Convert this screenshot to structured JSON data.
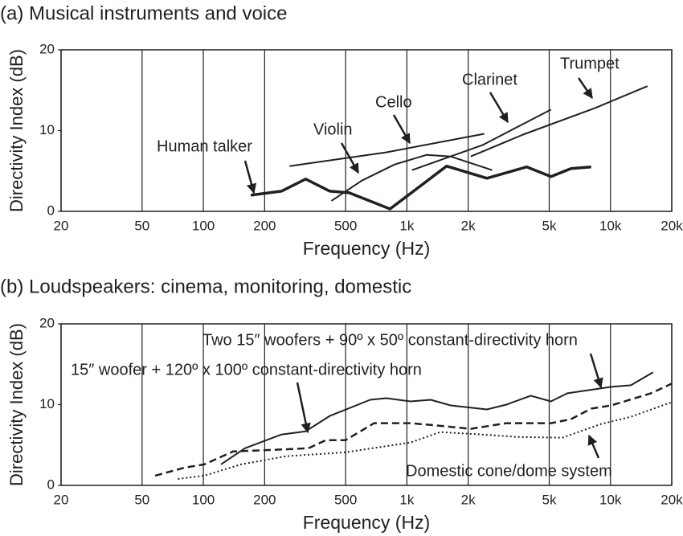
{
  "chart_data": [
    {
      "type": "line",
      "title": "(a) Musical instruments and voice",
      "x_label": "Frequency (Hz)",
      "y_label": "Directivity Index (dB)",
      "log_x": true,
      "grid": "x",
      "xlim": [
        20,
        20000
      ],
      "ylim": [
        0,
        20
      ],
      "xticks": [
        20,
        50,
        100,
        200,
        500,
        {
          "value": 1000,
          "label": "1k"
        },
        {
          "value": 2000,
          "label": "2k"
        },
        {
          "value": 5000,
          "label": "5k"
        },
        {
          "value": 10000,
          "label": "10k"
        },
        {
          "value": 20000,
          "label": "20k"
        }
      ],
      "yticks": [
        0,
        10,
        20
      ],
      "series": [
        {
          "name": "Human talker",
          "color": "#231f20",
          "line_width": 3.5,
          "dash": "solid",
          "x": [
            171,
            242,
            318,
            418,
            520,
            826,
            1566,
            2470,
            3880,
            5100,
            6400,
            8040
          ],
          "values": [
            2.0,
            2.5,
            4.0,
            2.5,
            2.3,
            0.3,
            5.6,
            4.1,
            5.5,
            4.3,
            5.3,
            5.5
          ]
        },
        {
          "name": "Violin",
          "color": "#231f20",
          "line_width": 2,
          "dash": "solid",
          "x": [
            426,
            600,
            870,
            1250,
            1640,
            2620
          ],
          "values": [
            1.3,
            3.8,
            5.8,
            7.0,
            6.8,
            5.1
          ]
        },
        {
          "name": "Cello",
          "color": "#231f20",
          "line_width": 2,
          "dash": "solid",
          "x": [
            265,
            790,
            2400
          ],
          "values": [
            5.6,
            7.3,
            9.6
          ]
        },
        {
          "name": "Clarinet",
          "color": "#231f20",
          "line_width": 2,
          "dash": "solid",
          "x": [
            1060,
            2350,
            5100
          ],
          "values": [
            5.1,
            8.2,
            12.6
          ]
        },
        {
          "name": "Trumpet",
          "color": "#231f20",
          "line_width": 2,
          "dash": "solid",
          "x": [
            2060,
            3720,
            8400,
            15200
          ],
          "values": [
            6.8,
            9.5,
            12.8,
            15.5
          ]
        }
      ]
    },
    {
      "type": "line",
      "title": "(b) Loudspeakers: cinema, monitoring, domestic",
      "x_label": "Frequency (Hz)",
      "y_label": "Directivity Index (dB)",
      "log_x": true,
      "grid": "x",
      "xlim": [
        20,
        20000
      ],
      "ylim": [
        0,
        20
      ],
      "xticks": [
        20,
        50,
        100,
        200,
        500,
        {
          "value": 1000,
          "label": "1k"
        },
        {
          "value": 2000,
          "label": "2k"
        },
        {
          "value": 5000,
          "label": "5k"
        },
        {
          "value": 10000,
          "label": "10k"
        },
        {
          "value": 20000,
          "label": "20k"
        }
      ],
      "yticks": [
        0,
        10,
        20
      ],
      "series": [
        {
          "name": "Two 15″ woofers + 90º x 50º constant-directivity horn",
          "color": "#231f20",
          "line_width": 2,
          "dash": "solid",
          "x": [
            122,
            160,
            242,
            318,
            418,
            660,
            790,
            1040,
            1310,
            1640,
            2470,
            3080,
            4060,
            5100,
            6140,
            10100,
            12600,
            16200
          ],
          "values": [
            2.6,
            4.6,
            6.3,
            6.7,
            8.6,
            10.6,
            10.8,
            10.4,
            10.6,
            9.9,
            9.4,
            10.0,
            11.1,
            10.4,
            11.4,
            12.2,
            12.4,
            14.0
          ]
        },
        {
          "name": "15″ woofer + 120º x 100º constant-directivity horn",
          "color": "#231f20",
          "line_width": 2.5,
          "dash": "dashed",
          "x": [
            58,
            81,
            101,
            140,
            221,
            328,
            400,
            500,
            690,
            1040,
            1420,
            2060,
            3080,
            5100,
            6400,
            8040,
            10100,
            15800,
            20000
          ],
          "values": [
            1.2,
            2.2,
            2.6,
            4.2,
            4.4,
            4.6,
            5.6,
            5.6,
            7.7,
            7.7,
            7.4,
            7.0,
            7.7,
            7.7,
            8.2,
            9.5,
            9.9,
            11.4,
            12.6
          ]
        },
        {
          "name": "Domestic cone/dome system",
          "color": "#231f20",
          "line_width": 2,
          "dash": "dotted",
          "x": [
            75,
            101,
            153,
            254,
            500,
            1040,
            1460,
            2330,
            3470,
            5800,
            9000,
            12600,
            20000
          ],
          "values": [
            0.8,
            1.2,
            2.6,
            3.6,
            4.1,
            5.3,
            6.6,
            6.3,
            6.0,
            5.9,
            7.6,
            8.5,
            10.3
          ]
        }
      ]
    }
  ]
}
